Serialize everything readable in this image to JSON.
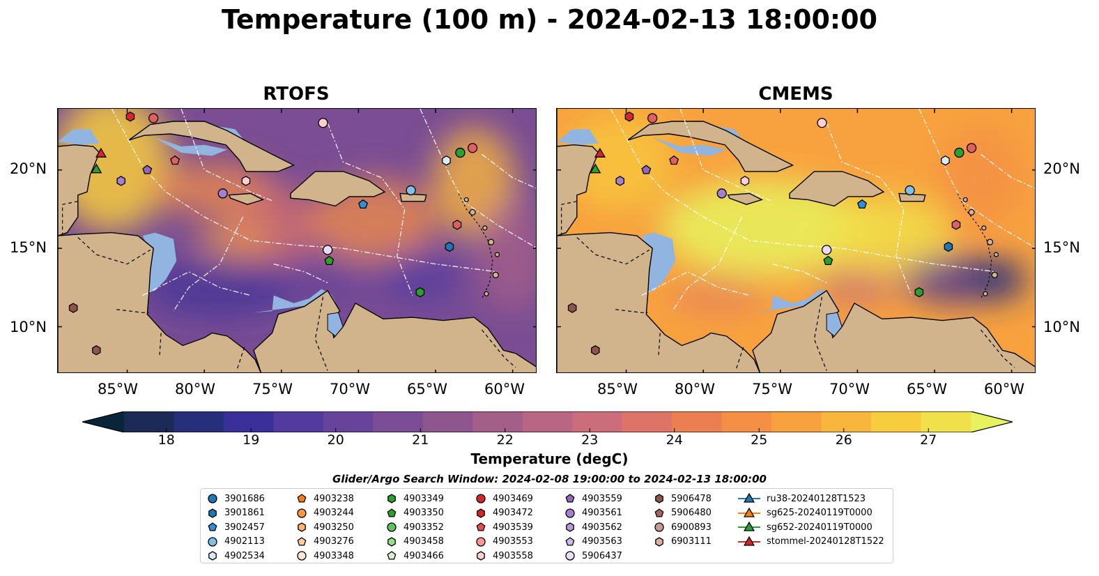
{
  "title": "Temperature (100 m) - 2024-02-13 18:00:00",
  "panels": [
    {
      "name": "RTOFS",
      "style": "rtofs"
    },
    {
      "name": "CMEMS",
      "style": "cmems"
    }
  ],
  "lat_ticks": [
    "20°N",
    "15°N",
    "10°N"
  ],
  "lon_ticks": [
    "85°W",
    "80°W",
    "75°W",
    "70°W",
    "65°W",
    "60°W"
  ],
  "colorbar": {
    "title": "Temperature (degC)",
    "ticks": [
      "18",
      "19",
      "20",
      "21",
      "22",
      "23",
      "24",
      "25",
      "26",
      "27"
    ],
    "min": 17.5,
    "max": 27.5,
    "extend": "both",
    "colors": [
      "#08253a",
      "#1b2b55",
      "#262f7a",
      "#3b2f9a",
      "#523a9f",
      "#674499",
      "#7a4d94",
      "#8e568f",
      "#a45f89",
      "#b96685",
      "#cc6d7c",
      "#de7468",
      "#ec7f52",
      "#f48f45",
      "#f8a23f",
      "#f9b63c",
      "#f7cc3d",
      "#f0e14a",
      "#e8f25e"
    ]
  },
  "search_window": "Glider/Argo Search Window: 2024-02-08 19:00:00 to 2024-02-13 18:00:00",
  "legend": [
    {
      "label": "3901686",
      "marker": "circle",
      "color": "#1f77b4"
    },
    {
      "label": "3901861",
      "marker": "hexagon",
      "color": "#1f77b4"
    },
    {
      "label": "3902457",
      "marker": "pentagon",
      "color": "#2f8fd9"
    },
    {
      "label": "4902113",
      "marker": "circle",
      "color": "#7fbfe8"
    },
    {
      "label": "4902534",
      "marker": "hexagon",
      "color": "#d8ecf8"
    },
    {
      "label": "4903238",
      "marker": "pentagon",
      "color": "#ff7f0e"
    },
    {
      "label": "4903244",
      "marker": "circle",
      "color": "#ff9a40"
    },
    {
      "label": "4903250",
      "marker": "hexagon",
      "color": "#ffb570"
    },
    {
      "label": "4903276",
      "marker": "pentagon",
      "color": "#ffcf9e"
    },
    {
      "label": "4903348",
      "marker": "circle",
      "color": "#ffe9d2"
    },
    {
      "label": "4903349",
      "marker": "hexagon",
      "color": "#2ca02c"
    },
    {
      "label": "4903350",
      "marker": "pentagon",
      "color": "#2ca02c"
    },
    {
      "label": "4903352",
      "marker": "circle",
      "color": "#5cc45c"
    },
    {
      "label": "4903458",
      "marker": "hexagon",
      "color": "#98df8a"
    },
    {
      "label": "4903466",
      "marker": "pentagon",
      "color": "#d4f5cc"
    },
    {
      "label": "4903469",
      "marker": "circle",
      "color": "#d62728"
    },
    {
      "label": "4903472",
      "marker": "hexagon",
      "color": "#d62728"
    },
    {
      "label": "4903539",
      "marker": "pentagon",
      "color": "#e34f50"
    },
    {
      "label": "4903553",
      "marker": "circle",
      "color": "#ff9896"
    },
    {
      "label": "4903558",
      "marker": "hexagon",
      "color": "#ffd0ce"
    },
    {
      "label": "4903559",
      "marker": "pentagon",
      "color": "#9467bd"
    },
    {
      "label": "4903561",
      "marker": "circle",
      "color": "#a57fd0"
    },
    {
      "label": "4903562",
      "marker": "hexagon",
      "color": "#b79be0"
    },
    {
      "label": "4903563",
      "marker": "pentagon",
      "color": "#cdb8ec"
    },
    {
      "label": "5906437",
      "marker": "circle",
      "color": "#e8dcf8"
    },
    {
      "label": "5906478",
      "marker": "hexagon",
      "color": "#8c564b"
    },
    {
      "label": "5906480",
      "marker": "pentagon",
      "color": "#a4685c"
    },
    {
      "label": "6900893",
      "marker": "circle",
      "color": "#c49c94"
    },
    {
      "label": "6903111",
      "marker": "hexagon",
      "color": "#dbb0a8"
    },
    {
      "label": "ru38-20240128T1523",
      "marker": "triangle-line",
      "color": "#1f77b4"
    },
    {
      "label": "sg625-20240119T0000",
      "marker": "triangle-line",
      "color": "#ff7f0e"
    },
    {
      "label": "sg652-20240119T0000",
      "marker": "triangle-line",
      "color": "#2ca02c"
    },
    {
      "label": "stommel-20240128T1522",
      "marker": "triangle-line",
      "color": "#d62728"
    }
  ],
  "markers_on_map": [
    {
      "lon": -84.8,
      "lat": 23.4,
      "marker": "hexagon",
      "color": "#d62728"
    },
    {
      "lon": -83.3,
      "lat": 23.3,
      "marker": "circle",
      "color": "#e06060"
    },
    {
      "lon": -72.3,
      "lat": 23.0,
      "marker": "circle",
      "color": "#ffd0ce"
    },
    {
      "lon": -62.6,
      "lat": 21.4,
      "marker": "circle",
      "color": "#e06060"
    },
    {
      "lon": -63.4,
      "lat": 21.1,
      "marker": "circle",
      "color": "#2ca02c"
    },
    {
      "lon": -64.3,
      "lat": 20.6,
      "marker": "hexagon",
      "color": "#d8ecf8"
    },
    {
      "lon": -81.9,
      "lat": 20.6,
      "marker": "pentagon",
      "color": "#e06060"
    },
    {
      "lon": -83.7,
      "lat": 20.0,
      "marker": "pentagon",
      "color": "#9467bd"
    },
    {
      "lon": -85.4,
      "lat": 19.3,
      "marker": "hexagon",
      "color": "#a57fd0"
    },
    {
      "lon": -77.3,
      "lat": 19.3,
      "marker": "hexagon",
      "color": "#ffd0ce"
    },
    {
      "lon": -78.8,
      "lat": 18.5,
      "marker": "circle",
      "color": "#a57fd0"
    },
    {
      "lon": -66.6,
      "lat": 18.7,
      "marker": "circle",
      "color": "#7fbfe8"
    },
    {
      "lon": -69.7,
      "lat": 17.8,
      "marker": "pentagon",
      "color": "#2f8fd9"
    },
    {
      "lon": -57.9,
      "lat": 16.9,
      "marker": "hexagon",
      "color": "#98df8a"
    },
    {
      "lon": -63.6,
      "lat": 16.5,
      "marker": "hexagon",
      "color": "#e06060"
    },
    {
      "lon": -64.1,
      "lat": 15.1,
      "marker": "hexagon",
      "color": "#1f77b4"
    },
    {
      "lon": -72.0,
      "lat": 14.9,
      "marker": "circle",
      "color": "#e8dcf8"
    },
    {
      "lon": -71.9,
      "lat": 14.2,
      "marker": "pentagon",
      "color": "#2ca02c"
    },
    {
      "lon": -66.0,
      "lat": 12.2,
      "marker": "hexagon",
      "color": "#2ca02c"
    },
    {
      "lon": -88.5,
      "lat": 11.2,
      "marker": "hexagon",
      "color": "#8c564b"
    },
    {
      "lon": -87.0,
      "lat": 8.5,
      "marker": "hexagon",
      "color": "#8c564b"
    },
    {
      "lon": -86.7,
      "lat": 21.0,
      "marker": "triangle",
      "color": "#d62728"
    },
    {
      "lon": -87.0,
      "lat": 20.0,
      "marker": "triangle",
      "color": "#2ca02c"
    }
  ]
}
